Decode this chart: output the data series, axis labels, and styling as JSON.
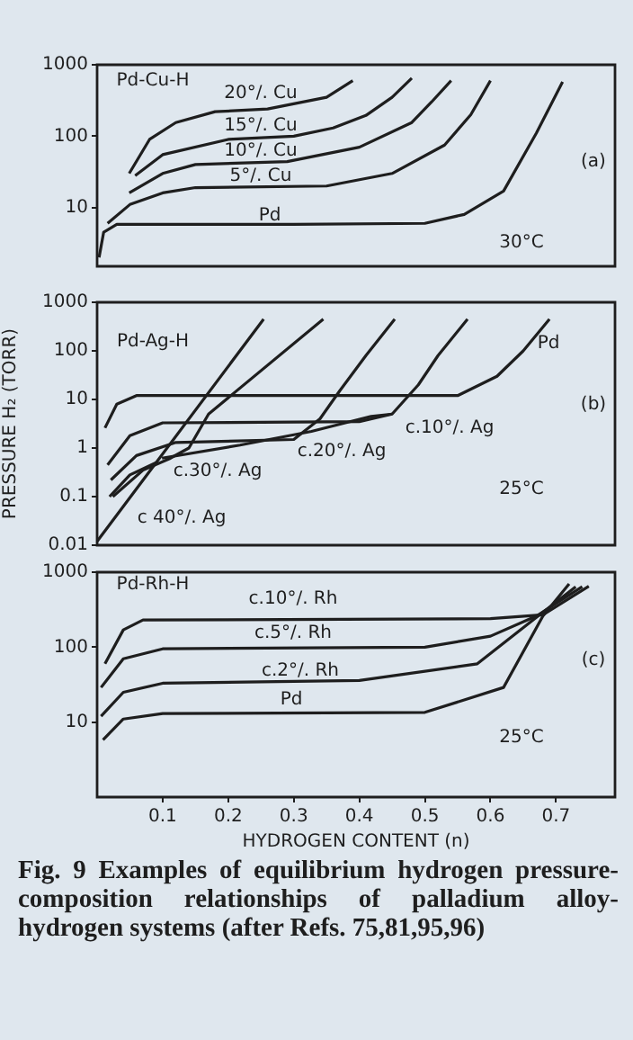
{
  "chart_data": [
    {
      "type": "line",
      "log": true,
      "grid": false,
      "marker": "none",
      "tick_labels": "y",
      "xlim": [
        0,
        0.79
      ],
      "ylim": [
        1.5,
        1000
      ],
      "yticks": [
        10,
        100,
        1000
      ],
      "annotations": [
        "Pd-Cu-H",
        "(a)",
        "30°C"
      ],
      "series": [
        {
          "name": "Pd",
          "color": "#1e1e1e",
          "x": [
            0.003,
            0.01,
            0.03,
            0.3,
            0.5,
            0.56,
            0.62,
            0.67,
            0.71
          ],
          "values": [
            2,
            4.5,
            5.8,
            5.8,
            6,
            8,
            17,
            110,
            575
          ]
        },
        {
          "name": "5°/. Cu",
          "color": "#1e1e1e",
          "x": [
            0.016,
            0.05,
            0.1,
            0.15,
            0.35,
            0.45,
            0.53,
            0.57,
            0.6
          ],
          "values": [
            6,
            11,
            16,
            19,
            20,
            30,
            75,
            200,
            600
          ]
        },
        {
          "name": "10°/. Cu",
          "color": "#1e1e1e",
          "x": [
            0.049,
            0.1,
            0.15,
            0.29,
            0.4,
            0.48,
            0.51,
            0.54
          ],
          "values": [
            16,
            30,
            40,
            44,
            70,
            155,
            300,
            600
          ]
        },
        {
          "name": "15°/. Cu",
          "color": "#1e1e1e",
          "x": [
            0.058,
            0.1,
            0.2,
            0.3,
            0.36,
            0.41,
            0.45,
            0.48
          ],
          "values": [
            28,
            55,
            90,
            100,
            130,
            195,
            350,
            650
          ]
        },
        {
          "name": "20°/. Cu",
          "color": "#1e1e1e",
          "x": [
            0.049,
            0.08,
            0.12,
            0.18,
            0.26,
            0.35,
            0.39
          ],
          "values": [
            30,
            90,
            155,
            220,
            240,
            350,
            600
          ]
        }
      ]
    },
    {
      "type": "line",
      "log": true,
      "grid": false,
      "marker": "none",
      "tick_labels": "y",
      "xlim": [
        0,
        0.79
      ],
      "ylim": [
        0.01,
        1000
      ],
      "yticks": [
        0.01,
        0.1,
        1,
        10,
        100,
        1000
      ],
      "ylabel": "PRESSURE H₂ (TORR)",
      "annotations": [
        "Pd-Ag-H",
        "(b)",
        "25°C"
      ],
      "series": [
        {
          "name": "Pd",
          "color": "#1e1e1e",
          "x": [
            0.012,
            0.03,
            0.06,
            0.55,
            0.61,
            0.65,
            0.69
          ],
          "values": [
            2.6,
            8,
            12,
            12,
            30,
            100,
            450
          ]
        },
        {
          "name": "c.10°/. Ag",
          "color": "#1e1e1e",
          "x": [
            0.016,
            0.05,
            0.1,
            0.4,
            0.45,
            0.49,
            0.52,
            0.565
          ],
          "values": [
            0.45,
            1.8,
            3.3,
            3.5,
            5,
            20,
            80,
            450
          ]
        },
        {
          "name": "c.20°/. Ag",
          "color": "#1e1e1e",
          "x": [
            0.021,
            0.06,
            0.12,
            0.3,
            0.34,
            0.37,
            0.41,
            0.454
          ],
          "values": [
            0.22,
            0.7,
            1.3,
            1.5,
            4,
            15,
            80,
            450
          ]
        },
        {
          "name": "c.30°/. Ag",
          "color": "#1e1e1e",
          "x": [
            0.024,
            0.07,
            0.11,
            0.14,
            0.17,
            0.345
          ],
          "values": [
            0.1,
            0.35,
            0.6,
            1,
            5,
            450
          ]
        },
        {
          "name": "c 40°/. Ag",
          "color": "#1e1e1e",
          "x": [
            0,
            0.09,
            0.254
          ],
          "values": [
            0.012,
            0.5,
            450
          ]
        },
        {
          "color": "#1e1e1e",
          "x": [
            0.019,
            0.05,
            0.09
          ],
          "values": [
            0.1,
            0.28,
            0.5
          ]
        },
        {
          "color": "#1e1e1e",
          "x": [
            0.099,
            0.218,
            0.327,
            0.418,
            0.45
          ],
          "values": [
            0.62,
            1.15,
            2.2,
            4.5,
            5
          ]
        }
      ]
    },
    {
      "type": "line",
      "log": true,
      "grid": false,
      "marker": "none",
      "xlim": [
        0,
        0.79
      ],
      "ylim": [
        1,
        1000
      ],
      "yticks": [
        10,
        100,
        1000
      ],
      "xticks": [
        0.1,
        0.2,
        0.3,
        0.4,
        0.5,
        0.6,
        0.7
      ],
      "xlabel": "HYDROGEN CONTENT (n)",
      "annotations": [
        "Pd-Rh-H",
        "(c)",
        "25°C",
        "Fig. 9 Examples of equilibrium hydrogen pressure-composition relationships of palladium alloy-hydrogen systems (after Refs. 75,81,95,96)"
      ],
      "series": [
        {
          "name": "c.10°/. Rh",
          "color": "#1e1e1e",
          "x": [
            0.012,
            0.04,
            0.07,
            0.6,
            0.68,
            0.75
          ],
          "values": [
            60,
            170,
            230,
            240,
            270,
            650
          ]
        },
        {
          "name": "c.5°/. Rh",
          "color": "#1e1e1e",
          "x": [
            0.006,
            0.04,
            0.1,
            0.5,
            0.6,
            0.67,
            0.74
          ],
          "values": [
            29,
            70,
            95,
            100,
            140,
            260,
            640
          ]
        },
        {
          "name": "c.2°/. Rh",
          "color": "#1e1e1e",
          "x": [
            0.006,
            0.04,
            0.1,
            0.4,
            0.58,
            0.67,
            0.73
          ],
          "values": [
            12,
            25,
            33,
            36,
            60,
            250,
            640
          ]
        },
        {
          "name": "Pd",
          "color": "#1e1e1e",
          "x": [
            0.009,
            0.04,
            0.1,
            0.5,
            0.62,
            0.68,
            0.72
          ],
          "values": [
            5.8,
            11,
            13,
            13.5,
            29,
            260,
            700
          ]
        }
      ]
    }
  ]
}
